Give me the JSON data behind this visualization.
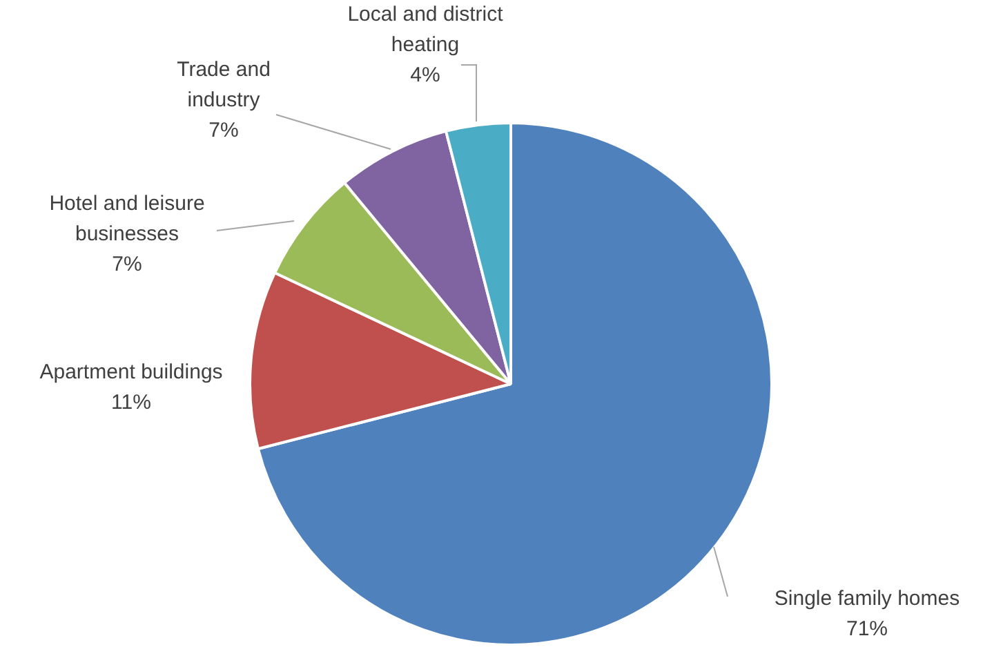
{
  "chart_data": {
    "type": "pie",
    "categories": [
      "Single family homes",
      "Apartment buildings",
      "Hotel and leisure businesses",
      "Trade and industry",
      "Local and district heating"
    ],
    "values": [
      71,
      11,
      7,
      7,
      4
    ],
    "value_labels": [
      "71%",
      "11%",
      "7%",
      "7%",
      "4%"
    ],
    "colors": [
      "#4f81bd",
      "#c0504d",
      "#9bbb59",
      "#8064a2",
      "#4bacc6"
    ],
    "legend": false
  }
}
